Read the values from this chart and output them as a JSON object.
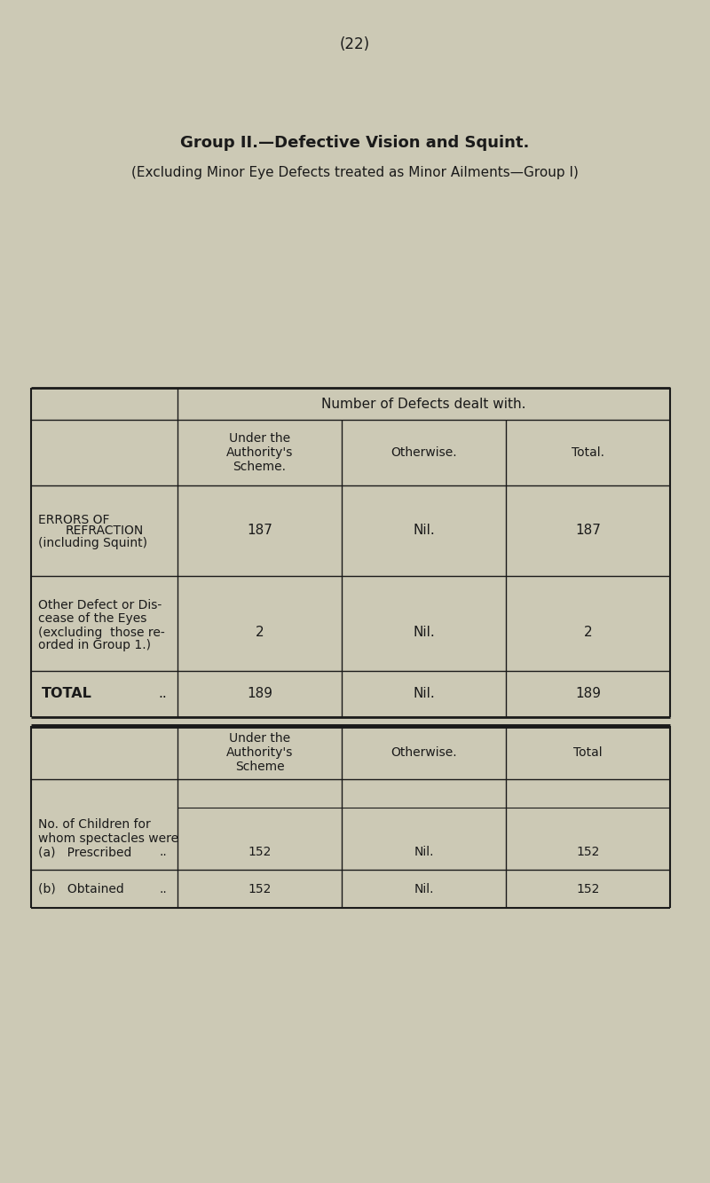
{
  "page_number": "(22)",
  "title": "Group II.—Defective Vision and Squint.",
  "subtitle": "(Excluding Minor Eye Defects treated as Minor Ailments—Group I)",
  "bg_color": "#ccc9b5",
  "table1_header": "Number of Defects dealt with.",
  "col_headers_1": [
    "Under the\nAuthority's\nScheme.",
    "Otherwise.",
    "Total."
  ],
  "col_headers_2": [
    "Under the\nAuthority's\nScheme",
    "Otherwise.",
    "Total"
  ],
  "row1_label_line1": "ERRORS OF",
  "row1_label_line2": "REFRACTION",
  "row1_label_line3": "(including Squint)",
  "row2_label_line1": "Other Defect or Dis-",
  "row2_label_line2": "cease of the Eyes",
  "row2_label_line3": "(excluding  those re-",
  "row2_label_line4": "orded in Group 1.)",
  "total_label": "TOTAL",
  "total_dots": "..",
  "row1_vals": [
    "187",
    "Nil.",
    "187"
  ],
  "row2_vals": [
    "2",
    "Nil.",
    "2"
  ],
  "row3_vals": [
    "189",
    "Nil.",
    "189"
  ],
  "section2_label_line1": "No. of Children for",
  "section2_label_line2": "whom spectacles were",
  "row_a_label": "(a)   Prescribed",
  "row_b_label": "(b)   Obtained",
  "row_a_vals": [
    "152",
    "Nil.",
    "152"
  ],
  "row_b_vals": [
    "152",
    "Nil.",
    "152"
  ]
}
